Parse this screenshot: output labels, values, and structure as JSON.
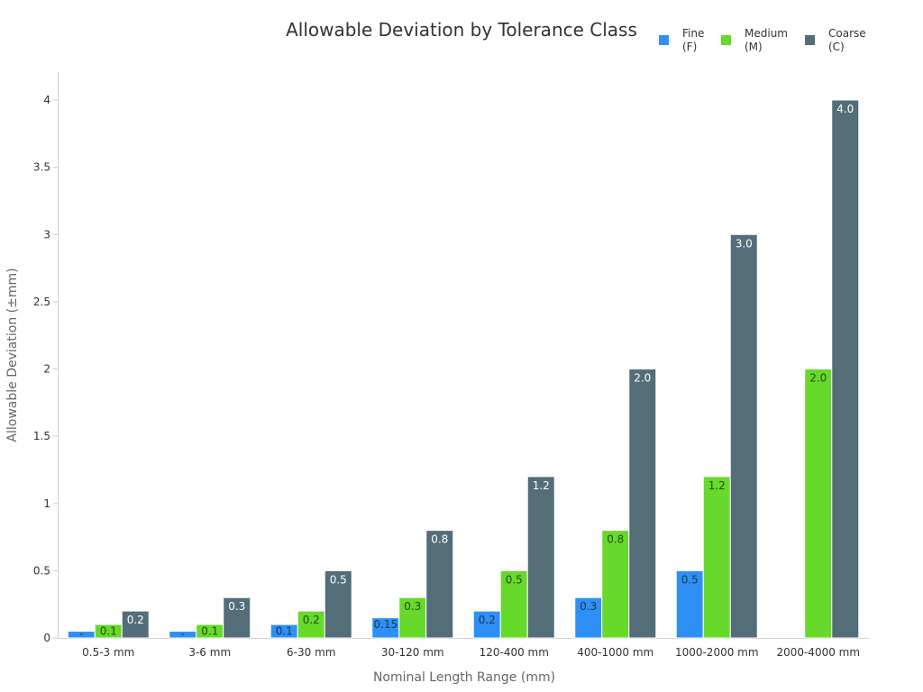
{
  "chart_data": {
    "type": "bar",
    "title": "Allowable Deviation by Tolerance Class",
    "xlabel": "Nominal Length Range (mm)",
    "ylabel": "Allowable Deviation (±mm)",
    "ylim": [
      0,
      4.2
    ],
    "yticks": [
      {
        "v": 0,
        "label": "0"
      },
      {
        "v": 0.5,
        "label": "0.5"
      },
      {
        "v": 1,
        "label": "1"
      },
      {
        "v": 1.5,
        "label": "1.5"
      },
      {
        "v": 2,
        "label": "2"
      },
      {
        "v": 2.5,
        "label": "2.5"
      },
      {
        "v": 3,
        "label": "3"
      },
      {
        "v": 3.5,
        "label": "3.5"
      },
      {
        "v": 4,
        "label": "4"
      }
    ],
    "categories": [
      "0.5-3 mm",
      "3-6 mm",
      "6-30 mm",
      "30-120 mm",
      "120-400 mm",
      "400-1000 mm",
      "1000-2000 mm",
      "2000-4000 mm"
    ],
    "legend_position": "top-right",
    "grid": false,
    "series": [
      {
        "name": "Fine\n(F)",
        "color": "#2e90f5",
        "label_color": "#1a3550",
        "values": [
          0.05,
          0.05,
          0.1,
          0.15,
          0.2,
          0.3,
          0.5,
          null
        ],
        "labels": [
          "-",
          "-",
          "0.1",
          "0.15",
          "0.2",
          "0.3",
          "0.5",
          ""
        ]
      },
      {
        "name": "Medium\n(M)",
        "color": "#66d92a",
        "label_color": "#2a4a18",
        "values": [
          0.1,
          0.1,
          0.2,
          0.3,
          0.5,
          0.8,
          1.2,
          2.0
        ],
        "labels": [
          "0.1",
          "0.1",
          "0.2",
          "0.3",
          "0.5",
          "0.8",
          "1.2",
          "2.0"
        ]
      },
      {
        "name": "Coarse\n(C)",
        "color": "#546e79",
        "label_color": "#ffffff",
        "values": [
          0.2,
          0.3,
          0.5,
          0.8,
          1.2,
          2.0,
          3.0,
          4.0
        ],
        "labels": [
          "0.2",
          "0.3",
          "0.5",
          "0.8",
          "1.2",
          "2.0",
          "3.0",
          "4.0"
        ]
      }
    ]
  }
}
